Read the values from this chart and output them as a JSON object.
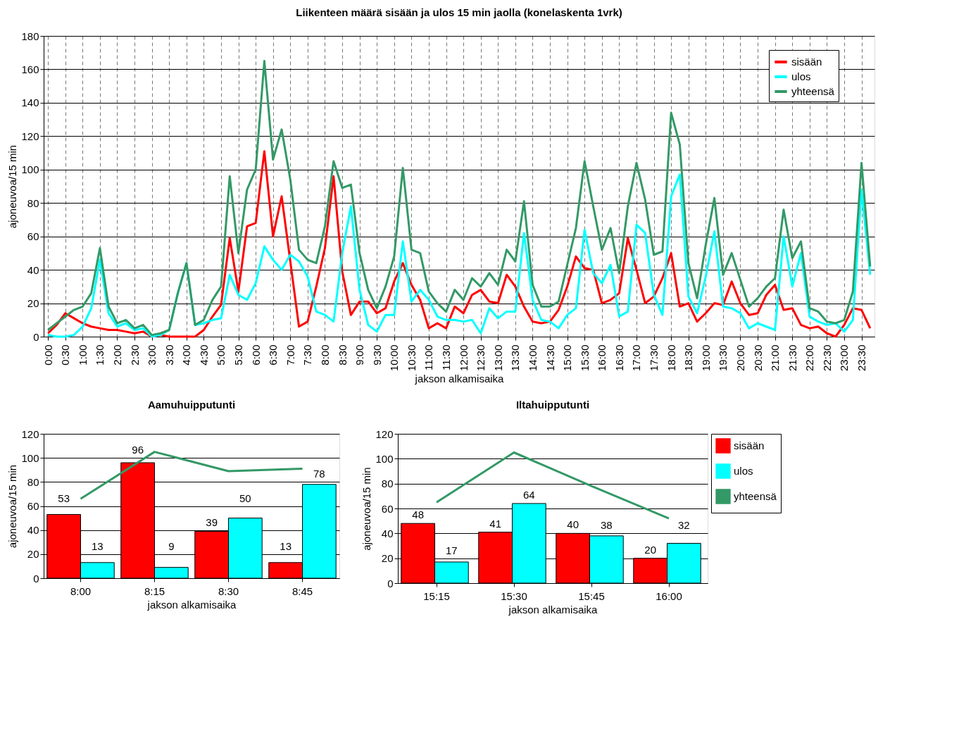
{
  "chart_data": [
    {
      "type": "line",
      "title": "Liikenteen määrä sisään ja ulos 15 min jaolla (konelaskenta 1vrk)",
      "xlabel": "jakson alkamisaika",
      "ylabel": "ajoneuvoa/15 min",
      "categories": [
        "0:00",
        null,
        "0:30",
        null,
        "1:00",
        null,
        "1:30",
        null,
        "2:00",
        null,
        "2:30",
        null,
        "3:00",
        null,
        "3:30",
        null,
        "4:00",
        null,
        "4:30",
        null,
        "5:00",
        null,
        "5:30",
        null,
        "6:00",
        null,
        "6:30",
        null,
        "7:00",
        null,
        "7:30",
        null,
        "8:00",
        null,
        "8:30",
        null,
        "9:00",
        null,
        "9:30",
        null,
        "10:00",
        null,
        "10:30",
        null,
        "11:00",
        null,
        "11:30",
        null,
        "12:00",
        null,
        "12:30",
        null,
        "13:00",
        null,
        "13:30",
        null,
        "14:00",
        null,
        "14:30",
        null,
        "15:00",
        null,
        "15:30",
        null,
        "16:00",
        null,
        "16:30",
        null,
        "17:00",
        null,
        "17:30",
        null,
        "18:00",
        null,
        "18:30",
        null,
        "19:00",
        null,
        "19:30",
        null,
        "20:00",
        null,
        "20:30",
        null,
        "21:00",
        null,
        "21:30",
        null,
        "22:00",
        null,
        "22:30",
        null,
        "23:00",
        null,
        "23:30",
        null
      ],
      "series": [
        {
          "name": "sisään",
          "color": "#ff0000",
          "values": [
            2,
            7,
            14,
            11,
            8,
            6,
            5,
            4,
            4,
            3,
            2,
            3,
            0,
            1,
            0,
            0,
            0,
            0,
            4,
            12,
            19,
            59,
            27,
            66,
            68,
            111,
            60,
            84,
            45,
            6,
            9,
            30,
            53,
            96,
            39,
            13,
            21,
            21,
            14,
            17,
            33,
            44,
            31,
            22,
            5,
            8,
            5,
            18,
            14,
            25,
            28,
            21,
            20,
            37,
            30,
            18,
            9,
            8,
            9,
            16,
            30,
            48,
            41,
            40,
            20,
            22,
            26,
            59,
            40,
            20,
            24,
            35,
            50,
            18,
            20,
            9,
            14,
            20,
            19,
            33,
            20,
            13,
            14,
            25,
            31,
            16,
            17,
            7,
            5,
            6,
            2,
            0,
            7,
            17,
            16,
            5
          ]
        },
        {
          "name": "ulos",
          "color": "#00ffff",
          "values": [
            1,
            0,
            0,
            1,
            6,
            17,
            46,
            14,
            6,
            8,
            4,
            5,
            0,
            1,
            4,
            26,
            44,
            7,
            8,
            10,
            11,
            37,
            25,
            22,
            32,
            54,
            46,
            40,
            49,
            45,
            36,
            15,
            13,
            9,
            50,
            78,
            28,
            7,
            3,
            13,
            13,
            57,
            21,
            28,
            22,
            12,
            10,
            10,
            9,
            10,
            2,
            17,
            11,
            15,
            15,
            62,
            22,
            10,
            9,
            5,
            13,
            17,
            64,
            38,
            32,
            43,
            12,
            15,
            67,
            62,
            25,
            13,
            84,
            97,
            24,
            14,
            36,
            63,
            18,
            17,
            14,
            5,
            8,
            6,
            4,
            60,
            30,
            50,
            12,
            9,
            7,
            8,
            3,
            10,
            88,
            37
          ]
        },
        {
          "name": "yhteensä",
          "color": "#339966",
          "values": [
            4,
            8,
            12,
            16,
            18,
            26,
            53,
            18,
            8,
            10,
            5,
            7,
            1,
            2,
            4,
            26,
            44,
            7,
            10,
            22,
            30,
            96,
            50,
            88,
            100,
            165,
            106,
            124,
            94,
            52,
            46,
            44,
            66,
            105,
            89,
            91,
            50,
            28,
            17,
            30,
            48,
            101,
            52,
            50,
            27,
            20,
            15,
            28,
            22,
            35,
            30,
            38,
            31,
            52,
            45,
            81,
            31,
            18,
            18,
            21,
            43,
            65,
            105,
            78,
            52,
            65,
            38,
            78,
            104,
            82,
            49,
            51,
            134,
            115,
            44,
            23,
            55,
            83,
            37,
            50,
            34,
            18,
            23,
            30,
            35,
            76,
            47,
            57,
            17,
            15,
            9,
            8,
            10,
            27,
            104,
            42
          ]
        }
      ],
      "ylim": [
        0,
        180
      ],
      "yticks": [
        0,
        20,
        40,
        60,
        80,
        100,
        120,
        140,
        160,
        180
      ],
      "grid": true,
      "legend": "top right"
    },
    {
      "type": "bar",
      "title": "Aamuhuipputunti",
      "xlabel": "jakson alkamisaika",
      "ylabel": "ajoneuvoa/15 min",
      "categories": [
        "8:00",
        "8:15",
        "8:30",
        "8:45"
      ],
      "series": [
        {
          "name": "sisään",
          "type": "bar",
          "color": "#ff0000",
          "values": [
            53,
            96,
            39,
            13
          ],
          "value_labels": [
            "53",
            "96",
            "39",
            "13"
          ]
        },
        {
          "name": "ulos",
          "type": "bar",
          "color": "#00ffff",
          "values": [
            13,
            9,
            50,
            78
          ],
          "value_labels": [
            "13",
            "9",
            "50",
            "78"
          ]
        },
        {
          "name": "yhteensä",
          "type": "line",
          "color": "#339966",
          "values": [
            66,
            105,
            89,
            91
          ]
        }
      ],
      "ylim": [
        0,
        120
      ],
      "yticks": [
        0,
        20,
        40,
        60,
        80,
        100,
        120
      ],
      "grid": "y",
      "legend": "top right"
    },
    {
      "type": "bar",
      "title": "Iltahuipputunti",
      "xlabel": "jakson alkamisaika",
      "ylabel": "ajoneuvoa/15 min",
      "categories": [
        "15:15",
        "15:30",
        "15:45",
        "16:00"
      ],
      "series": [
        {
          "name": "sisään",
          "type": "bar",
          "color": "#ff0000",
          "values": [
            48,
            41,
            40,
            20
          ],
          "value_labels": [
            "48",
            "41",
            "40",
            "20"
          ]
        },
        {
          "name": "ulos",
          "type": "bar",
          "color": "#00ffff",
          "values": [
            17,
            64,
            38,
            32
          ],
          "value_labels": [
            "17",
            "64",
            "38",
            "32"
          ]
        },
        {
          "name": "yhteensä",
          "type": "line",
          "color": "#339966",
          "values": [
            65,
            105,
            78,
            52
          ]
        }
      ],
      "ylim": [
        0,
        120
      ],
      "yticks": [
        0,
        20,
        40,
        60,
        80,
        100,
        120
      ],
      "grid": "y",
      "legend": "top right"
    }
  ]
}
